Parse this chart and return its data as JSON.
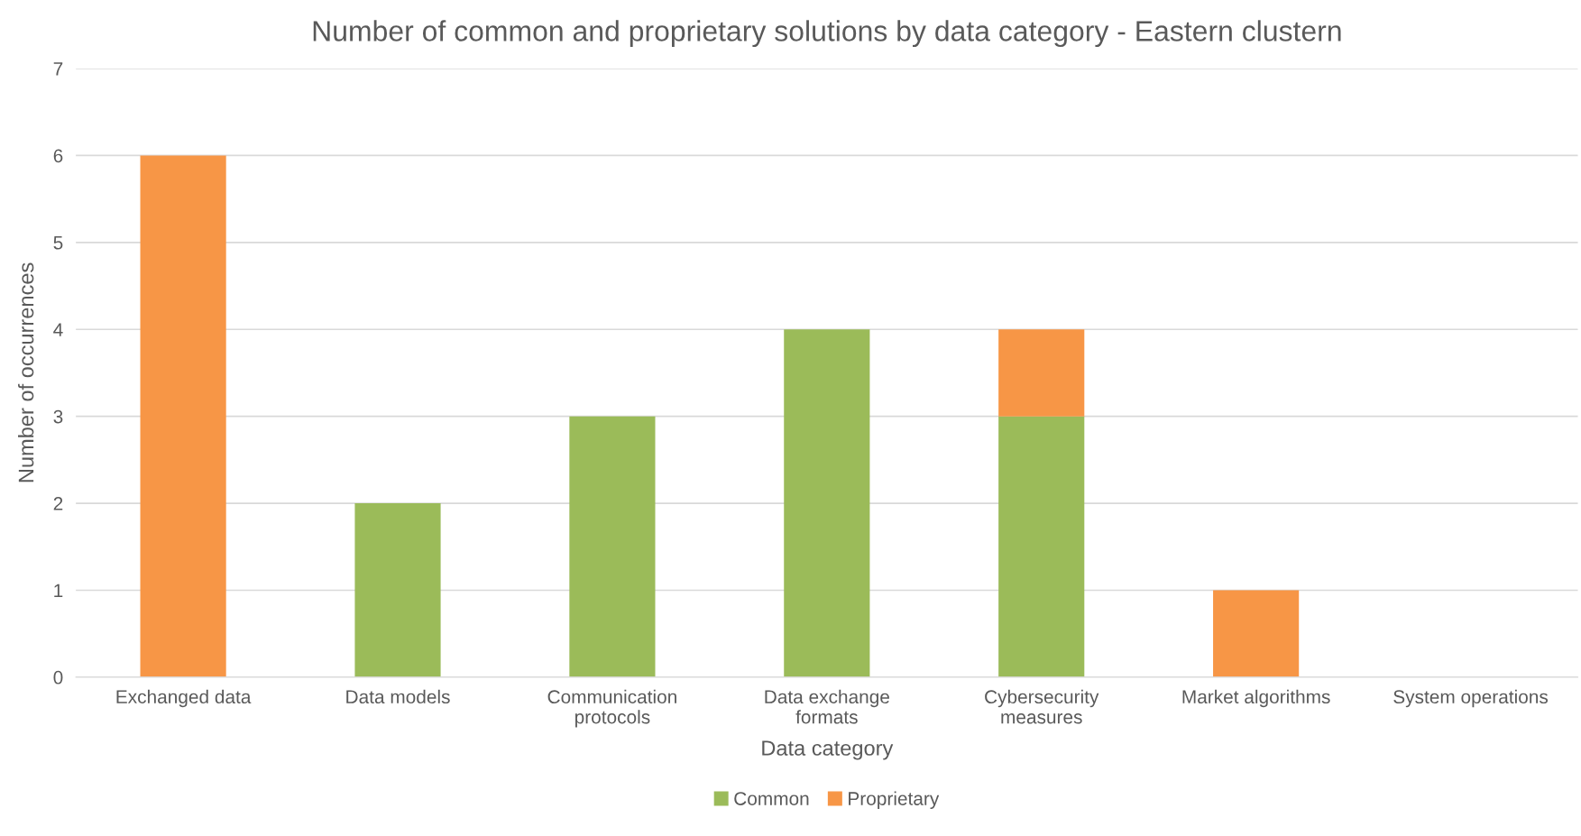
{
  "chart_data": {
    "type": "bar",
    "title": "Number of common and proprietary solutions by data category - Eastern clustern",
    "xlabel": "Data category",
    "ylabel": "Number of occurrences",
    "categories": [
      "Exchanged data",
      "Data models",
      "Communication\nprotocols",
      "Data exchange\nformats",
      "Cybersecurity\nmeasures",
      "Market algorithms",
      "System operations"
    ],
    "series": [
      {
        "name": "Common",
        "color": "#9bbb59",
        "values": [
          0,
          2,
          3,
          4,
          3,
          0,
          0
        ]
      },
      {
        "name": "Proprietary",
        "color": "#f79646",
        "values": [
          6,
          0,
          0,
          0,
          1,
          1,
          0
        ]
      }
    ],
    "stacked": true,
    "ylim": [
      0,
      7
    ],
    "yticks": [
      0,
      1,
      2,
      3,
      4,
      5,
      6,
      7
    ],
    "grid": "y",
    "legend": "bottom"
  }
}
